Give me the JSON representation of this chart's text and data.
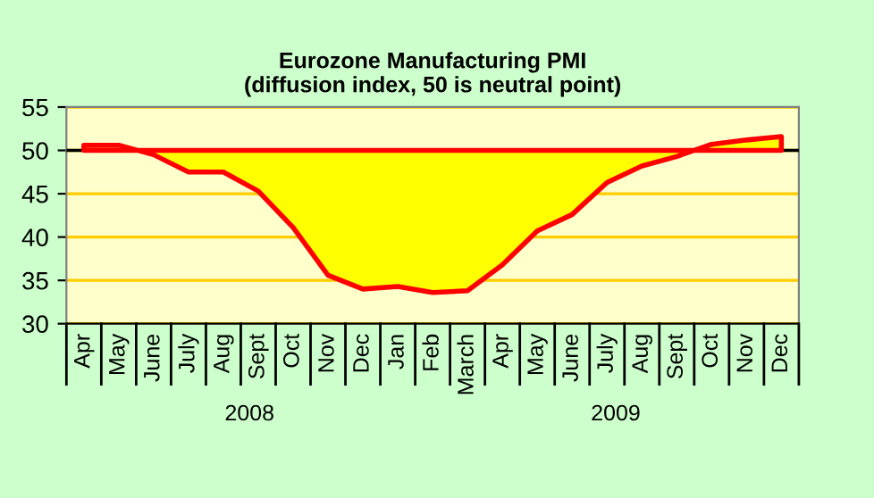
{
  "chart_data": {
    "type": "area",
    "title": "Eurozone Manufacturing PMI\n(diffusion index, 50 is neutral point)",
    "categories": [
      "Apr",
      "May",
      "June",
      "July",
      "Aug",
      "Sept",
      "Oct",
      "Nov",
      "Dec",
      "Jan",
      "Feb",
      "March",
      "Apr",
      "May",
      "June",
      "July",
      "Aug",
      "Sept",
      "Oct",
      "Nov",
      "Dec"
    ],
    "series": [
      {
        "color": "#ffff00",
        "values": [
          50.6,
          50.6,
          49.5,
          47.5,
          47.5,
          45.3,
          41.1,
          35.6,
          34.0,
          34.3,
          33.6,
          33.8,
          36.8,
          40.7,
          42.6,
          46.3,
          48.2,
          49.3,
          50.7,
          51.2,
          51.6
        ]
      }
    ],
    "ylim": [
      30,
      55
    ],
    "yticks": [
      30,
      35,
      40,
      45,
      50,
      55
    ],
    "grid": "y",
    "ref_lines": [
      {
        "axis": "y",
        "value": 50,
        "color": "#000000"
      }
    ],
    "annotations": [
      "2008",
      "2009"
    ]
  }
}
